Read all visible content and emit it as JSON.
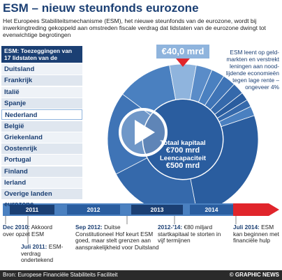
{
  "header": {
    "title": "ESM – nieuw steunfonds eurozone",
    "intro": "Het Europees Stabiliteitsmechanisme (ESM), het nieuwe steunfonds van de eurozone, wordt bij inwerkingtreding gekoppeld aan omstreden fiscale verdrag dat lidstaten van de eurozone dwingt tot evenwichtige begrotingen"
  },
  "chart_data": {
    "type": "pie",
    "title": "ESM: Toezeggingen van 17 lidstaten van de eurozone",
    "categories": [
      "Duitsland",
      "Frankrijk",
      "Italië",
      "Spanje",
      "Nederland",
      "België",
      "Griekenland",
      "Oostenrijk",
      "Portugal",
      "Finland",
      "Ierland",
      "Overige landen eurozone"
    ],
    "values": [
      190,
      142.7,
      125.4,
      83.3,
      40,
      24.3,
      19.7,
      19.5,
      17.6,
      12.6,
      11.1,
      14.3
    ],
    "highlight": "Nederland",
    "annotation": "€40,0 mrd",
    "colors": [
      "#2a5d9f",
      "#3569ab",
      "#3f74b6",
      "#4a80c0",
      "#8fb4dd",
      "#5a8cc8",
      "#4a80c0",
      "#3f74b6",
      "#3569ab",
      "#2a5d9f",
      "#3569ab",
      "#4a80c0"
    ],
    "center_text": [
      "Totaal kapitaal",
      "€700 mrd",
      "Leencapaciteit",
      "€500 mrd"
    ],
    "note": "ESM leent op geld-markten en verstrekt leningen aan nood-lijdende economieën tegen lage rente – ongeveer 4%"
  },
  "timeline": {
    "years": [
      "2011",
      "2012",
      "2013",
      "2014"
    ],
    "events": [
      {
        "date": "Dec 2010:",
        "text": "Akkoord over opzet ESM"
      },
      {
        "date": "Juli 2011:",
        "text": "ESM-verdrag ondertekend"
      },
      {
        "date": "Sep 2012:",
        "text": "Duitse Constitutioneel Hof keurt ESM goed, maar stelt grenzen aan aansprakelijkheid voor Duitsland"
      },
      {
        "date": "2012-'14:",
        "text": "€80 miljard startkapitaal te storten in vijf termijnen"
      },
      {
        "date": "Juli 2014:",
        "text": "ESM kan beginnen met financiële hulp"
      }
    ]
  },
  "footer": {
    "source": "Bron: Europese Financiële Stabiliteits Faciliteit",
    "credit": "© GRAPHIC NEWS"
  }
}
